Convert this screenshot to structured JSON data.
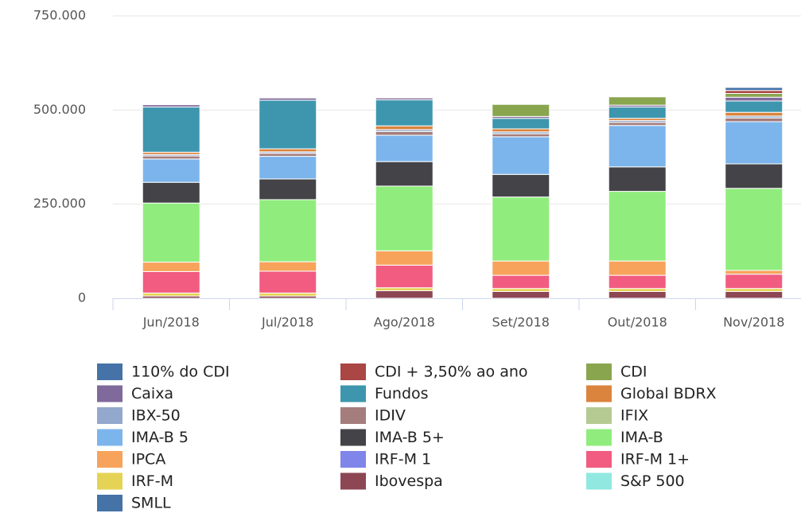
{
  "chart_data": {
    "type": "stacked_bar",
    "categories": [
      "Jun/2018",
      "Jul/2018",
      "Ago/2018",
      "Set/2018",
      "Out/2018",
      "Nov/2018"
    ],
    "ylim": [
      0,
      750000
    ],
    "yticks": [
      0,
      {
        "value": 250000,
        "label": "250.000"
      },
      {
        "value": 500000,
        "label": "500.000"
      },
      {
        "value": 750000,
        "label": "750.000"
      }
    ],
    "grid": true,
    "series": [
      {
        "name": "110% do CDI",
        "color": "#4572a7",
        "values": [
          0,
          0,
          0,
          0,
          0,
          8000
        ]
      },
      {
        "name": "CDI + 3,50% ao ano",
        "color": "#aa4643",
        "values": [
          0,
          0,
          0,
          0,
          0,
          8000
        ]
      },
      {
        "name": "CDI",
        "color": "#89a54e",
        "values": [
          0,
          0,
          0,
          32000,
          22000,
          10000
        ]
      },
      {
        "name": "Caixa",
        "color": "#80699b",
        "values": [
          6000,
          6000,
          5000,
          5000,
          5000,
          10000
        ]
      },
      {
        "name": "Fundos",
        "color": "#3d96ae",
        "values": [
          120000,
          129000,
          69000,
          28000,
          30000,
          30000
        ]
      },
      {
        "name": "Global BDRX",
        "color": "#db843d",
        "values": [
          6000,
          8000,
          10000,
          8000,
          6000,
          10000
        ]
      },
      {
        "name": "IBX-50",
        "color": "#92a8cd",
        "values": [
          4000,
          4000,
          5000,
          5000,
          5000,
          5000
        ]
      },
      {
        "name": "IDIV",
        "color": "#a47d7c",
        "values": [
          8000,
          8000,
          10000,
          8000,
          8000,
          10000
        ]
      },
      {
        "name": "IFIX",
        "color": "#b5ca92",
        "values": [
          0,
          0,
          0,
          0,
          0,
          0
        ]
      },
      {
        "name": "IMA-B 5",
        "color": "#7cb5ec",
        "values": [
          62000,
          60000,
          70000,
          100000,
          110000,
          112000
        ]
      },
      {
        "name": "IMA-B 5+",
        "color": "#434348",
        "values": [
          55000,
          55000,
          65000,
          60000,
          65000,
          65000
        ]
      },
      {
        "name": "IMA-B",
        "color": "#90ed7d",
        "values": [
          157000,
          165000,
          172000,
          170000,
          185000,
          218000
        ]
      },
      {
        "name": "IPCA",
        "color": "#f7a35c",
        "values": [
          25000,
          25000,
          38000,
          38000,
          38000,
          10000
        ]
      },
      {
        "name": "IRF-M 1",
        "color": "#8085e9",
        "values": [
          0,
          0,
          0,
          0,
          0,
          0
        ]
      },
      {
        "name": "IRF-M 1+",
        "color": "#f15c80",
        "values": [
          57000,
          58000,
          60000,
          35000,
          35000,
          38000
        ]
      },
      {
        "name": "IRF-M",
        "color": "#e4d354",
        "values": [
          8000,
          8000,
          8000,
          8000,
          8000,
          8000
        ]
      },
      {
        "name": "Ibovespa",
        "color": "#8d4653",
        "values": [
          6000,
          6000,
          20000,
          18000,
          18000,
          18000
        ]
      },
      {
        "name": "S&P 500",
        "color": "#91e8e1",
        "values": [
          0,
          0,
          0,
          0,
          0,
          0
        ]
      },
      {
        "name": "SMLL",
        "color": "#4572a7",
        "values": [
          0,
          0,
          0,
          0,
          0,
          0
        ]
      }
    ]
  }
}
